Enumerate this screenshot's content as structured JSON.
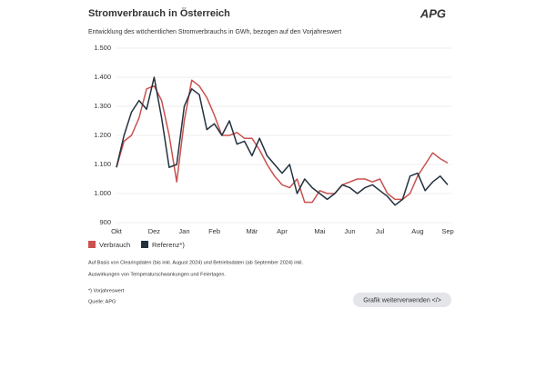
{
  "logo": "APG",
  "chart_data": {
    "type": "line",
    "title": "Stromverbrauch in Österreich",
    "subtitle": "Entwicklung des wöchentlichen Stromverbrauchs in GWh, bezogen auf den Vorjahreswert",
    "categories": [
      "Okt",
      null,
      null,
      null,
      null,
      "Dez",
      null,
      null,
      null,
      "Jan",
      null,
      null,
      null,
      "Feb",
      null,
      null,
      null,
      null,
      "Mär",
      null,
      null,
      null,
      "Apr",
      null,
      null,
      null,
      null,
      "Mai",
      null,
      null,
      null,
      "Jun",
      null,
      null,
      null,
      "Jul",
      null,
      null,
      null,
      null,
      "Aug",
      null,
      null,
      null,
      "Sep"
    ],
    "series": [
      {
        "name": "Verbrauch",
        "color": "#c9524f",
        "values": [
          1090,
          1180,
          1200,
          1260,
          1360,
          1370,
          1320,
          1200,
          1040,
          1250,
          1390,
          1370,
          1330,
          1270,
          1200,
          1200,
          1210,
          1190,
          1190,
          1150,
          1100,
          1060,
          1030,
          1020,
          1050,
          970,
          970,
          1010,
          1000,
          1000,
          1030,
          1040,
          1050,
          1050,
          1040,
          1050,
          1000,
          980,
          980,
          1000,
          1060,
          1100,
          1140,
          1120,
          1105
        ]
      },
      {
        "name": "Referenz*)",
        "color": "#23313f",
        "values": [
          1090,
          1200,
          1280,
          1320,
          1290,
          1400,
          1260,
          1090,
          1100,
          1300,
          1360,
          1340,
          1220,
          1240,
          1200,
          1250,
          1170,
          1180,
          1130,
          1190,
          1130,
          1100,
          1070,
          1100,
          1000,
          1050,
          1020,
          1000,
          980,
          1000,
          1030,
          1020,
          1000,
          1020,
          1030,
          1010,
          990,
          960,
          980,
          1060,
          1070,
          1010,
          1040,
          1060,
          1030
        ]
      }
    ],
    "ylim": [
      900,
      1500
    ],
    "yticks": [
      900,
      {
        "value": 1000,
        "label": "1.000"
      },
      {
        "value": 1100,
        "label": "1.100"
      },
      {
        "value": 1200,
        "label": "1.200"
      },
      {
        "value": 1300,
        "label": "1.300"
      },
      {
        "value": 1400,
        "label": "1.400"
      },
      {
        "value": 1500,
        "label": "1.500"
      }
    ],
    "grid": true
  },
  "notes": [
    "Auf Basis von Clearingdaten (bis inkl. August 2024) und Betriebsdaten (ab September 2024) inkl.",
    "Auswirkungen von Temperaturschwankungen und Feiertagen.",
    "*) Vorjahreswert",
    "Quelle: APG"
  ],
  "button": "Grafik weiterverwenden </>"
}
